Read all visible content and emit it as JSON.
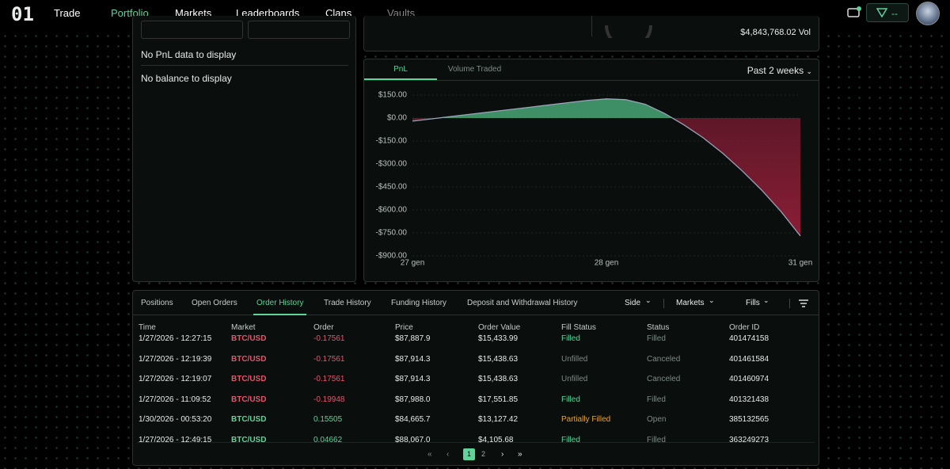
{
  "nav": {
    "logo": "01",
    "items": [
      "Trade",
      "Portfolio",
      "Markets",
      "Leaderboards",
      "Clans",
      "Vaults"
    ],
    "active": 1,
    "disabled": 5,
    "wallet": "--"
  },
  "balance_panel": {
    "pnl_empty": "No PnL data to display",
    "balance_empty": "No balance to display"
  },
  "stats": {
    "volume": "$4,843,768.02 Vol"
  },
  "pnl_chart": {
    "type": "area",
    "tabs": [
      "PnL",
      "Volume Traded"
    ],
    "active_tab": 0,
    "period": "Past 2 weeks",
    "x": [
      0,
      1,
      2,
      3,
      4,
      5,
      6,
      7,
      8,
      9,
      10,
      11,
      12,
      13,
      14,
      15,
      16,
      17,
      18,
      19,
      20
    ],
    "values": [
      -20,
      -5,
      10,
      25,
      40,
      55,
      70,
      85,
      100,
      115,
      125,
      120,
      90,
      30,
      -45,
      -130,
      -230,
      -345,
      -470,
      -610,
      -770
    ],
    "xlim": [
      0,
      20
    ],
    "xticks": [
      {
        "value": 0,
        "label": "27 gen"
      },
      {
        "value": 10,
        "label": "28 gen"
      },
      {
        "value": 20,
        "label": "31 gen"
      }
    ],
    "ylim": [
      -900,
      150
    ],
    "yticks": [
      {
        "value": 150,
        "label": "$150.00"
      },
      {
        "value": 0,
        "label": "$0.00"
      },
      {
        "value": -150,
        "label": "-$150.00"
      },
      {
        "value": -300,
        "label": "-$300.00"
      },
      {
        "value": -450,
        "label": "-$450.00"
      },
      {
        "value": -600,
        "label": "-$600.00"
      },
      {
        "value": -750,
        "label": "-$750.00"
      },
      {
        "value": -900,
        "label": "-$900.00"
      }
    ],
    "grid": true,
    "positive_color": "#3e8f66",
    "negative_color": "#8a1d36",
    "line_color": "#9aa4b8"
  },
  "orders": {
    "tabs": [
      "Positions",
      "Open Orders",
      "Order History",
      "Trade History",
      "Funding History",
      "Deposit and Withdrawal History"
    ],
    "active_tab": 2,
    "filters": [
      "Side",
      "Markets",
      "Fills"
    ],
    "columns": [
      "Time",
      "Market",
      "Order",
      "Price",
      "Order Value",
      "Fill Status",
      "Status",
      "Order ID"
    ],
    "rows": [
      [
        "1/27/2026 - 12:27:15",
        "BTC/USD",
        "-0.17561",
        "$87,887.9",
        "$15,433.99",
        "Filled",
        "Filled",
        "401474158"
      ],
      [
        "1/27/2026 - 12:19:39",
        "BTC/USD",
        "-0.17561",
        "$87,914.3",
        "$15,438.63",
        "Unfilled",
        "Canceled",
        "401461584"
      ],
      [
        "1/27/2026 - 12:19:07",
        "BTC/USD",
        "-0.17561",
        "$87,914.3",
        "$15,438.63",
        "Unfilled",
        "Canceled",
        "401460974"
      ],
      [
        "1/27/2026 - 11:09:52",
        "BTC/USD",
        "-0.19948",
        "$87,988.0",
        "$17,551.85",
        "Filled",
        "Filled",
        "401321438"
      ],
      [
        "1/30/2026 - 00:53:20",
        "BTC/USD",
        "0.15505",
        "$84,665.7",
        "$13,127.42",
        "Partially Filled",
        "Open",
        "385132565"
      ],
      [
        "1/27/2026 - 12:49:15",
        "BTC/USD",
        "0.04662",
        "$88,067.0",
        "$4,105.68",
        "Filled",
        "Filled",
        "363249273"
      ]
    ],
    "pages": [
      1,
      2
    ],
    "current_page": 0
  }
}
